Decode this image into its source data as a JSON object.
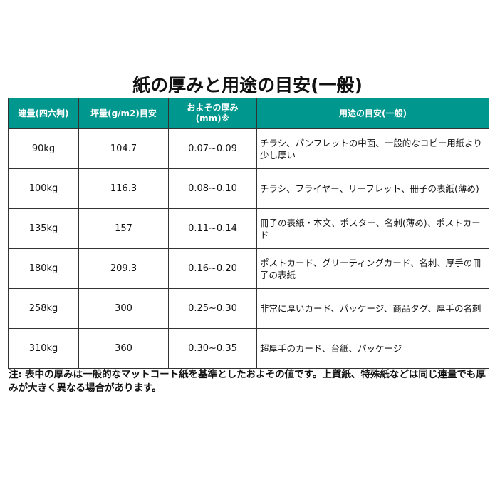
{
  "title": "紙の厚みと用途の目安(一般)",
  "table": {
    "headers": [
      "連量(四六判)",
      "坪量(g/m2)目安",
      "およその厚み(mm)※",
      "用途の目安(一般)"
    ],
    "rows": [
      [
        "90kg",
        "104.7",
        "0.07~0.09",
        "チラシ、パンフレットの中面、一般的なコピー用紙より少し厚い"
      ],
      [
        "100kg",
        "116.3",
        "0.08~0.10",
        "チラシ、フライヤー、リーフレット、冊子の表紙(薄め)"
      ],
      [
        "135kg",
        "157",
        "0.11~0.14",
        "冊子の表紙・本文、ポスター、名刺(薄め)、ポストカード"
      ],
      [
        "180kg",
        "209.3",
        "0.16~0.20",
        "ポストカード、グリーティングカード、名刺、厚手の冊子の表紙"
      ],
      [
        "258kg",
        "300",
        "0.25~0.30",
        "非常に厚いカード、パッケージ、商品タグ、厚手の名刺"
      ],
      [
        "310kg",
        "360",
        "0.30~0.35",
        "超厚手のカード、台紙、パッケージ"
      ]
    ]
  },
  "note": "注: 表中の厚みは一般的なマットコート紙を基準としたおよその値です。上質紙、特殊紙などは同じ連量でも厚みが大きく異なる場合があります。",
  "colors": {
    "header_bg": "#00978f"
  }
}
